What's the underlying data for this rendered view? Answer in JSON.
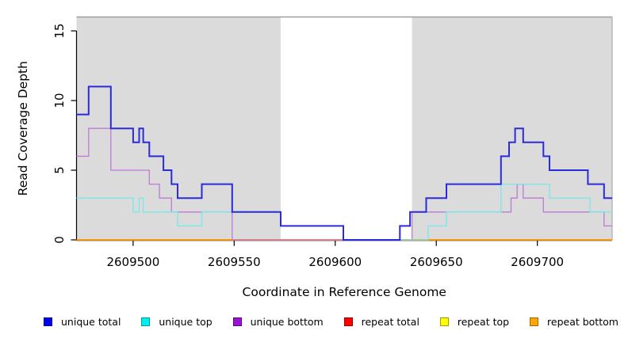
{
  "figure": {
    "background": "#ffffff",
    "plot_bg_shade": "#DBDBDB",
    "frame_top_color": "#979797",
    "frame_right_color": "#ACACAC",
    "axis_color": "#000000"
  },
  "chart_data": {
    "type": "step-line",
    "title": "",
    "xlabel": "Coordinate in Reference Genome",
    "ylabel": "Read Coverage Depth",
    "xlim": [
      2609472,
      2609737
    ],
    "ylim": [
      0,
      16
    ],
    "xticks": [
      2609500,
      2609550,
      2609600,
      2609650,
      2609700
    ],
    "yticks": [
      0,
      5,
      10,
      15
    ],
    "grid": false,
    "legend_position": "bottom",
    "shaded_regions": [
      {
        "x0": 2609472,
        "x1": 2609573
      },
      {
        "x0": 2609638,
        "x1": 2609737
      }
    ],
    "unshaded_gap": {
      "x0": 2609573,
      "x1": 2609638
    },
    "series": [
      {
        "name": "repeat total",
        "color": "#DD1111",
        "width": 1.3,
        "points": [
          [
            2609472,
            0
          ],
          [
            2609737,
            0
          ]
        ]
      },
      {
        "name": "repeat top",
        "color": "#F0F010",
        "width": 1.3,
        "points": [
          [
            2609472,
            0
          ],
          [
            2609737,
            0
          ]
        ]
      },
      {
        "name": "repeat bottom",
        "color": "#FF9500",
        "width": 1.7,
        "points": [
          [
            2609472,
            0
          ],
          [
            2609737,
            0
          ]
        ]
      },
      {
        "name": "unique bottom",
        "color": "#BE79D6",
        "width": 1.3,
        "points": [
          [
            2609472,
            6
          ],
          [
            2609478,
            8
          ],
          [
            2609489,
            5
          ],
          [
            2609508,
            4
          ],
          [
            2609513,
            3
          ],
          [
            2609519,
            2
          ],
          [
            2609549,
            0
          ],
          [
            2609638,
            2
          ],
          [
            2609687,
            3
          ],
          [
            2609690,
            4
          ],
          [
            2609693,
            3
          ],
          [
            2609703,
            2
          ],
          [
            2609733,
            1
          ],
          [
            2609737,
            1
          ]
        ]
      },
      {
        "name": "unique top",
        "color": "#79E8E8",
        "width": 1.3,
        "points": [
          [
            2609472,
            3
          ],
          [
            2609500,
            2
          ],
          [
            2609503,
            3
          ],
          [
            2609505,
            2
          ],
          [
            2609522,
            1
          ],
          [
            2609534,
            2
          ],
          [
            2609573,
            1
          ],
          [
            2609604,
            0
          ],
          [
            2609646,
            1
          ],
          [
            2609655,
            2
          ],
          [
            2609682,
            4
          ],
          [
            2609706,
            3
          ],
          [
            2609726,
            2
          ],
          [
            2609737,
            2
          ]
        ]
      },
      {
        "name": "unique total",
        "color": "#2B2BDB",
        "width": 2,
        "points": [
          [
            2609472,
            9
          ],
          [
            2609478,
            11
          ],
          [
            2609489,
            8
          ],
          [
            2609500,
            7
          ],
          [
            2609503,
            8
          ],
          [
            2609505,
            7
          ],
          [
            2609508,
            6
          ],
          [
            2609515,
            5
          ],
          [
            2609519,
            4
          ],
          [
            2609522,
            3
          ],
          [
            2609534,
            4
          ],
          [
            2609549,
            2
          ],
          [
            2609573,
            1
          ],
          [
            2609604,
            0
          ],
          [
            2609632,
            1
          ],
          [
            2609637,
            2
          ],
          [
            2609645,
            3
          ],
          [
            2609655,
            4
          ],
          [
            2609682,
            6
          ],
          [
            2609686,
            7
          ],
          [
            2609689,
            8
          ],
          [
            2609693,
            7
          ],
          [
            2609703,
            6
          ],
          [
            2609706,
            5
          ],
          [
            2609725,
            4
          ],
          [
            2609733,
            3
          ],
          [
            2609737,
            3
          ]
        ]
      }
    ]
  },
  "legend": {
    "items": [
      {
        "label": "unique total",
        "fill": "#0000EE",
        "border": "#0000A0"
      },
      {
        "label": "unique top",
        "fill": "#00EEEE",
        "border": "#009D9D"
      },
      {
        "label": "unique bottom",
        "fill": "#9B10D6",
        "border": "#5C0A80"
      },
      {
        "label": "repeat total",
        "fill": "#FF0000",
        "border": "#990000"
      },
      {
        "label": "repeat top",
        "fill": "#FFFF00",
        "border": "#9D9D00"
      },
      {
        "label": "repeat bottom",
        "fill": "#FFA500",
        "border": "#A56B00"
      }
    ]
  }
}
